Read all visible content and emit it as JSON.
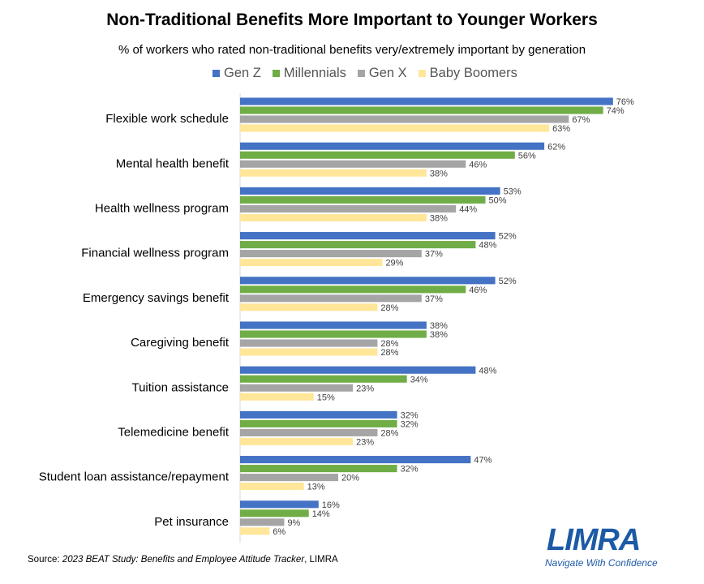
{
  "title": "Non-Traditional Benefits More Important to Younger Workers",
  "subtitle": "% of workers who rated non-traditional benefits very/extremely important by generation",
  "source_label": "Source:",
  "source_title": "2023 BEAT Study: Benefits and Employee Attitude Tracker",
  "source_suffix": ", LIMRA",
  "logo": {
    "text": "LIMRA",
    "tagline": "Navigate With Confidence",
    "color": "#1c5aa6"
  },
  "chart_data": {
    "type": "bar",
    "orientation": "horizontal",
    "categories": [
      "Flexible work schedule",
      "Mental health benefit",
      "Health wellness program",
      "Financial wellness program",
      "Emergency savings benefit",
      "Caregiving benefit",
      "Tuition assistance",
      "Telemedicine benefit",
      "Student loan assistance/repayment",
      "Pet insurance"
    ],
    "series": [
      {
        "name": "Gen Z",
        "color": "#4472c4",
        "values": [
          76,
          62,
          53,
          52,
          52,
          38,
          48,
          32,
          47,
          16
        ]
      },
      {
        "name": "Millennials",
        "color": "#70ad47",
        "values": [
          74,
          56,
          50,
          48,
          46,
          38,
          34,
          32,
          32,
          14
        ]
      },
      {
        "name": "Gen X",
        "color": "#a5a5a5",
        "values": [
          67,
          46,
          44,
          37,
          37,
          28,
          23,
          28,
          20,
          9
        ]
      },
      {
        "name": "Baby Boomers",
        "color": "#ffe699",
        "values": [
          63,
          38,
          38,
          29,
          28,
          28,
          15,
          23,
          13,
          6
        ]
      }
    ],
    "value_suffix": "%",
    "xlim": [
      0,
      80
    ],
    "grid": false,
    "legend_position": "top"
  }
}
